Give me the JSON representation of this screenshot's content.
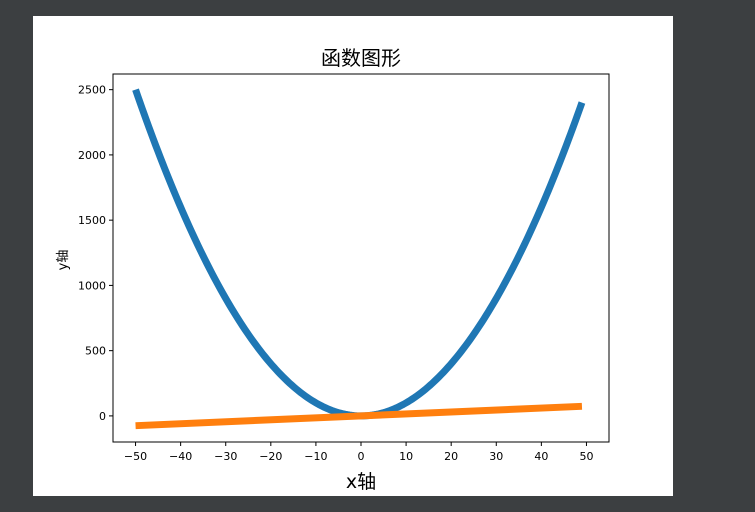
{
  "chart_data": {
    "type": "line",
    "title": "函数图形",
    "xlabel": "x轴",
    "ylabel": "y轴",
    "xlim": [
      -55,
      55
    ],
    "ylim": [
      -200,
      2620
    ],
    "xticks": [
      -50,
      -40,
      -30,
      -20,
      -10,
      0,
      10,
      20,
      30,
      40,
      50
    ],
    "yticks": [
      0,
      500,
      1000,
      1500,
      2000,
      2500
    ],
    "grid": false,
    "series": [
      {
        "function": "y = x^2",
        "color": "#1f77b4",
        "x": [
          -50,
          -40,
          -30,
          -20,
          -10,
          0,
          10,
          20,
          30,
          40,
          49
        ],
        "y": [
          2500,
          1600,
          900,
          400,
          100,
          0,
          100,
          400,
          900,
          1600,
          2401
        ]
      },
      {
        "function": "y = 1.5x",
        "color": "#ff7f0e",
        "x": [
          -50,
          49
        ],
        "y": [
          -75,
          73.5
        ]
      }
    ]
  }
}
